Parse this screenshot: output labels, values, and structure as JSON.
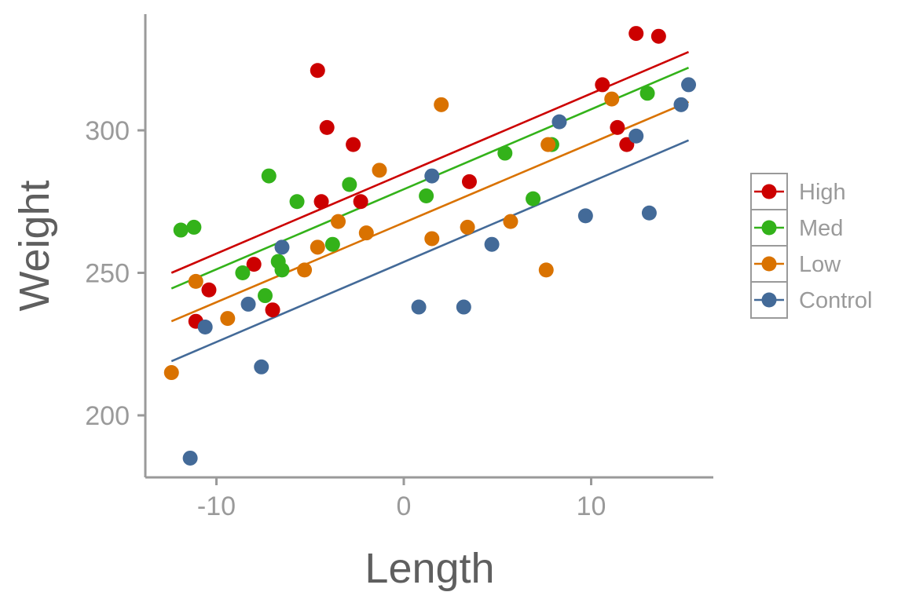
{
  "chart_data": {
    "type": "scatter",
    "xlabel": "Length",
    "ylabel": "Weight",
    "x_ticks": [
      -10,
      0,
      10
    ],
    "y_ticks": [
      200,
      250,
      300
    ],
    "xlim": [
      -14,
      16.5
    ],
    "ylim": [
      178,
      340
    ],
    "grid": false,
    "legend_position": "right",
    "fit_lines": true,
    "series": [
      {
        "name": "High",
        "color": "#cc0000",
        "fit": {
          "x": [
            -12.4,
            15.2
          ],
          "y": [
            250,
            327.5
          ]
        },
        "points": [
          {
            "x": -11.1,
            "y": 233
          },
          {
            "x": -10.4,
            "y": 244
          },
          {
            "x": -8.0,
            "y": 253
          },
          {
            "x": -7.0,
            "y": 237
          },
          {
            "x": -4.6,
            "y": 321
          },
          {
            "x": -4.1,
            "y": 301
          },
          {
            "x": -4.4,
            "y": 275
          },
          {
            "x": -2.7,
            "y": 295
          },
          {
            "x": -2.3,
            "y": 275
          },
          {
            "x": 3.5,
            "y": 282
          },
          {
            "x": 10.6,
            "y": 316
          },
          {
            "x": 11.4,
            "y": 301
          },
          {
            "x": 11.9,
            "y": 295
          },
          {
            "x": 12.4,
            "y": 334
          },
          {
            "x": 13.6,
            "y": 333
          }
        ]
      },
      {
        "name": "Med",
        "color": "#33b21a",
        "fit": {
          "x": [
            -12.4,
            15.2
          ],
          "y": [
            244.5,
            322
          ]
        },
        "points": [
          {
            "x": -11.9,
            "y": 265
          },
          {
            "x": -11.2,
            "y": 266
          },
          {
            "x": -8.6,
            "y": 250
          },
          {
            "x": -7.4,
            "y": 242
          },
          {
            "x": -7.2,
            "y": 284
          },
          {
            "x": -6.7,
            "y": 254
          },
          {
            "x": -6.5,
            "y": 251
          },
          {
            "x": -5.7,
            "y": 275
          },
          {
            "x": -3.8,
            "y": 260
          },
          {
            "x": -2.9,
            "y": 281
          },
          {
            "x": 1.2,
            "y": 277
          },
          {
            "x": 5.4,
            "y": 292
          },
          {
            "x": 6.9,
            "y": 276
          },
          {
            "x": 7.9,
            "y": 295
          },
          {
            "x": 13.0,
            "y": 313
          }
        ]
      },
      {
        "name": "Low",
        "color": "#d97200",
        "fit": {
          "x": [
            -12.4,
            15.2
          ],
          "y": [
            233,
            310
          ]
        },
        "points": [
          {
            "x": -12.4,
            "y": 215
          },
          {
            "x": -11.1,
            "y": 247
          },
          {
            "x": -9.4,
            "y": 234
          },
          {
            "x": -5.3,
            "y": 251
          },
          {
            "x": -4.6,
            "y": 259
          },
          {
            "x": -3.5,
            "y": 268
          },
          {
            "x": -2.0,
            "y": 264
          },
          {
            "x": -1.3,
            "y": 286
          },
          {
            "x": 1.5,
            "y": 262
          },
          {
            "x": 2.0,
            "y": 309
          },
          {
            "x": 3.4,
            "y": 266
          },
          {
            "x": 5.7,
            "y": 268
          },
          {
            "x": 7.6,
            "y": 251
          },
          {
            "x": 7.7,
            "y": 295
          },
          {
            "x": 11.1,
            "y": 311
          }
        ]
      },
      {
        "name": "Control",
        "color": "#436a98",
        "fit": {
          "x": [
            -12.4,
            15.2
          ],
          "y": [
            219,
            296.5
          ]
        },
        "points": [
          {
            "x": -11.4,
            "y": 185
          },
          {
            "x": -10.6,
            "y": 231
          },
          {
            "x": -8.3,
            "y": 239
          },
          {
            "x": -7.6,
            "y": 217
          },
          {
            "x": -6.5,
            "y": 259
          },
          {
            "x": 0.8,
            "y": 238
          },
          {
            "x": 1.5,
            "y": 284
          },
          {
            "x": 3.2,
            "y": 238
          },
          {
            "x": 4.7,
            "y": 260
          },
          {
            "x": 8.3,
            "y": 303
          },
          {
            "x": 9.7,
            "y": 270
          },
          {
            "x": 12.4,
            "y": 298
          },
          {
            "x": 13.1,
            "y": 271
          },
          {
            "x": 14.8,
            "y": 309
          },
          {
            "x": 15.2,
            "y": 316
          }
        ]
      }
    ]
  }
}
